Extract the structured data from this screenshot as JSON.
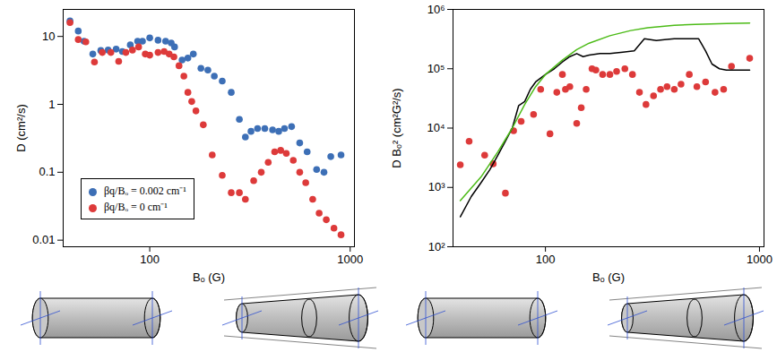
{
  "chart_data": [
    {
      "type": "scatter",
      "x_label": "Bₒ (G)",
      "y_label": "D (cm²/s)",
      "log": true,
      "xlim": [
        37,
        1050
      ],
      "ylim": [
        0.008,
        25
      ],
      "xticks": [
        100,
        1000
      ],
      "yticks": [
        0.01,
        0.1,
        1,
        10
      ],
      "legend": "lower left",
      "marker": "circle",
      "series": [
        {
          "name": "βq/Bₒ = 0.002 cm⁻¹",
          "color": "#3d6fb6",
          "x": [
            40,
            44,
            47,
            52,
            57,
            62,
            68,
            73,
            80,
            87,
            92,
            100,
            110,
            120,
            128,
            133,
            145,
            155,
            165,
            180,
            195,
            210,
            230,
            255,
            280,
            300,
            320,
            345,
            375,
            410,
            440,
            470,
            510,
            560,
            610,
            680,
            740,
            800,
            900
          ],
          "values": [
            17,
            12,
            8.5,
            5.5,
            6.2,
            6.3,
            6.5,
            6.0,
            7.5,
            8.5,
            8.5,
            9.5,
            8.8,
            8.5,
            8.0,
            7.0,
            4.5,
            4.8,
            5.5,
            3.4,
            3.2,
            2.6,
            2.2,
            1.5,
            0.6,
            0.33,
            0.4,
            0.44,
            0.44,
            0.42,
            0.4,
            0.44,
            0.47,
            0.27,
            0.2,
            0.11,
            0.1,
            0.17,
            0.18
          ]
        },
        {
          "name": "βq/Bₒ = 0 cm⁻¹",
          "color": "#dd3a3a",
          "x": [
            40,
            44,
            48,
            53,
            58,
            64,
            70,
            76,
            82,
            88,
            95,
            100,
            110,
            118,
            125,
            132,
            140,
            148,
            155,
            162,
            170,
            185,
            205,
            230,
            255,
            280,
            300,
            330,
            360,
            390,
            420,
            450,
            480,
            520,
            560,
            600,
            650,
            700,
            760,
            830,
            900
          ],
          "values": [
            16,
            9,
            8.3,
            4.2,
            5.8,
            5.8,
            4.3,
            5.8,
            6.3,
            7.0,
            5.5,
            5.3,
            5.8,
            6.0,
            5.5,
            5.0,
            3.7,
            2.6,
            1.5,
            1.1,
            0.8,
            0.5,
            0.18,
            0.09,
            0.05,
            0.05,
            0.04,
            0.075,
            0.1,
            0.14,
            0.2,
            0.21,
            0.19,
            0.15,
            0.1,
            0.07,
            0.04,
            0.025,
            0.02,
            0.015,
            0.012
          ]
        }
      ]
    },
    {
      "type": "scatter",
      "x_label": "Bₒ (G)",
      "y_label": "D Bₒ² (cm²G²/s)",
      "log": true,
      "xlim": [
        37,
        1050
      ],
      "ylim": [
        100,
        1000000
      ],
      "xticks": [
        100,
        1000
      ],
      "yticks": [
        {
          "value": 100,
          "label": "10²"
        },
        {
          "value": 1000,
          "label": "10³"
        },
        {
          "value": 10000,
          "label": "10⁴"
        },
        {
          "value": 100000,
          "label": "10⁵"
        },
        {
          "value": 1000000,
          "label": "10⁶"
        }
      ],
      "series": [
        {
          "type": "scatter",
          "marker": "circle",
          "color": "#dd3a3a",
          "x": [
            40,
            44,
            52,
            57,
            65,
            71,
            77,
            88,
            95,
            105,
            113,
            120,
            124,
            130,
            140,
            147,
            155,
            165,
            172,
            185,
            200,
            215,
            235,
            255,
            275,
            295,
            320,
            345,
            370,
            400,
            430,
            470,
            510,
            560,
            620,
            680,
            740,
            900
          ],
          "values": [
            2400,
            6000,
            3500,
            2500,
            800,
            9000,
            13000,
            17000,
            45000,
            8000,
            40000,
            80000,
            45000,
            50000,
            12000,
            22000,
            45000,
            100000,
            95000,
            80000,
            80000,
            90000,
            100000,
            80000,
            40000,
            25000,
            35000,
            45000,
            50000,
            45000,
            55000,
            80000,
            50000,
            60000,
            40000,
            45000,
            110000,
            150000
          ]
        },
        {
          "type": "line",
          "color": "#000000",
          "x": [
            40,
            45,
            50,
            55,
            60,
            65,
            70,
            75,
            80,
            85,
            90,
            100,
            110,
            120,
            130,
            140,
            150,
            160,
            180,
            200,
            230,
            260,
            290,
            330,
            360,
            400,
            460,
            520,
            560,
            600,
            650,
            700,
            800,
            900
          ],
          "values": [
            320,
            700,
            1200,
            2000,
            3500,
            6000,
            10000,
            24000,
            28000,
            45000,
            60000,
            80000,
            100000,
            130000,
            160000,
            180000,
            160000,
            170000,
            180000,
            180000,
            190000,
            200000,
            320000,
            300000,
            310000,
            320000,
            320000,
            320000,
            200000,
            120000,
            100000,
            95000,
            95000,
            95000
          ]
        },
        {
          "type": "line",
          "color": "#4cbb17",
          "x": [
            40,
            50,
            60,
            70,
            80,
            90,
            100,
            120,
            140,
            160,
            200,
            250,
            300,
            400,
            500,
            700,
            900
          ],
          "values": [
            600,
            1500,
            4000,
            10000,
            25000,
            50000,
            80000,
            140000,
            210000,
            270000,
            360000,
            440000,
            490000,
            540000,
            560000,
            580000,
            590000
          ]
        }
      ]
    }
  ]
}
